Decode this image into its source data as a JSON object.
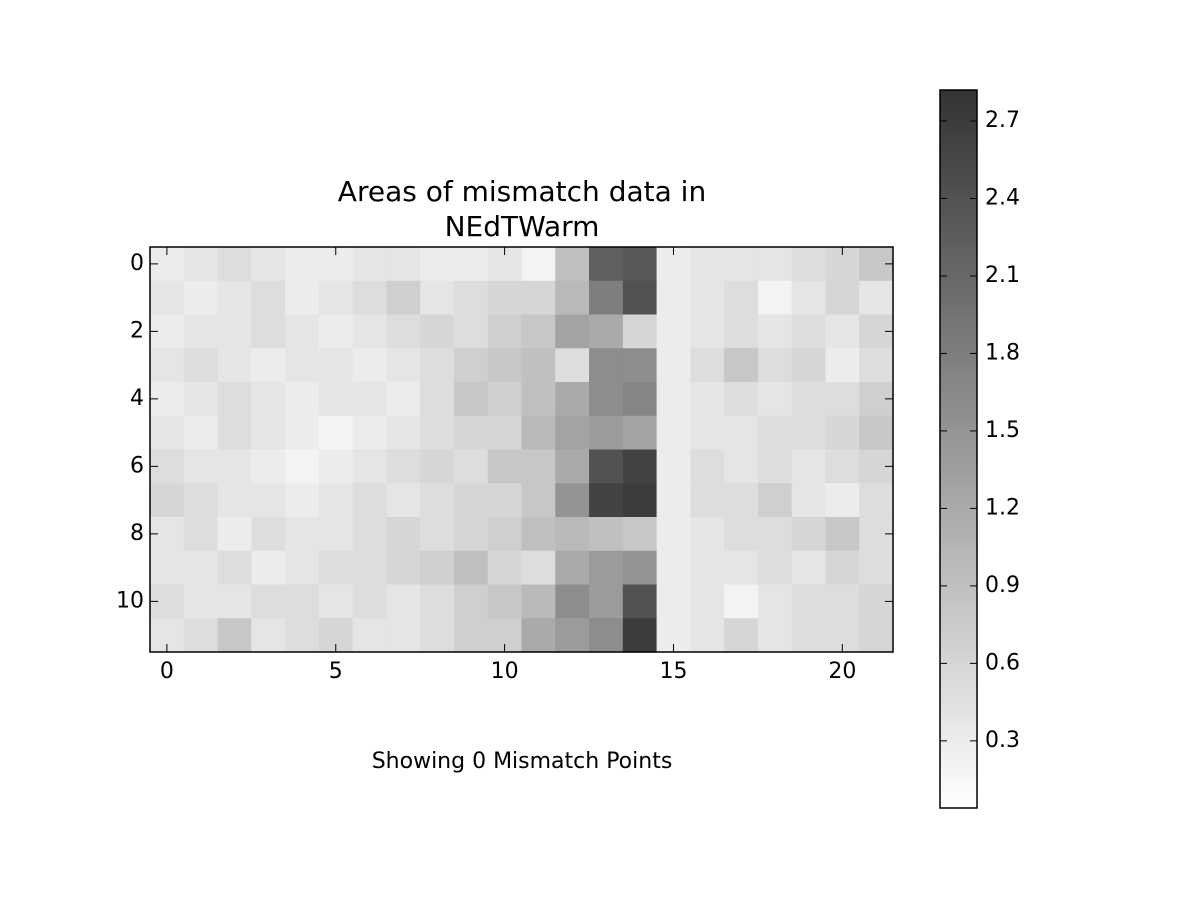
{
  "chart_data": {
    "type": "heatmap",
    "title": [
      "Areas of mismatch data in",
      "NEdTWarm"
    ],
    "annotation": "Showing 0 Mismatch Points",
    "xlim": [
      -0.5,
      21.5
    ],
    "xticks": [
      0,
      5,
      10,
      15,
      20
    ],
    "ylim": [
      11.5,
      -0.5
    ],
    "yticks": [
      0,
      2,
      4,
      6,
      8,
      10
    ],
    "clim": [
      0.04,
      2.82
    ],
    "cticks": [
      0.3,
      0.6,
      0.9,
      1.2,
      1.5,
      1.8,
      2.1,
      2.4,
      2.7
    ],
    "colormap": [
      "#ffffff",
      "#333333"
    ],
    "z": [
      [
        0.3,
        0.4,
        0.5,
        0.4,
        0.3,
        0.3,
        0.4,
        0.4,
        0.3,
        0.3,
        0.4,
        0.2,
        0.9,
        2.2,
        2.3,
        0.3,
        0.4,
        0.4,
        0.4,
        0.5,
        0.6,
        0.8
      ],
      [
        0.4,
        0.3,
        0.4,
        0.5,
        0.3,
        0.4,
        0.5,
        0.7,
        0.4,
        0.5,
        0.6,
        0.6,
        1.0,
        1.8,
        2.4,
        0.3,
        0.4,
        0.5,
        0.2,
        0.4,
        0.6,
        0.4
      ],
      [
        0.3,
        0.4,
        0.4,
        0.5,
        0.4,
        0.3,
        0.4,
        0.5,
        0.6,
        0.5,
        0.7,
        0.8,
        1.3,
        1.2,
        0.6,
        0.3,
        0.4,
        0.5,
        0.4,
        0.5,
        0.4,
        0.6
      ],
      [
        0.4,
        0.5,
        0.4,
        0.3,
        0.4,
        0.4,
        0.3,
        0.4,
        0.5,
        0.7,
        0.8,
        0.9,
        0.5,
        1.6,
        1.6,
        0.3,
        0.5,
        0.8,
        0.5,
        0.6,
        0.3,
        0.5
      ],
      [
        0.3,
        0.4,
        0.5,
        0.4,
        0.3,
        0.4,
        0.4,
        0.3,
        0.5,
        0.8,
        0.7,
        0.9,
        1.2,
        1.6,
        1.7,
        0.3,
        0.4,
        0.5,
        0.4,
        0.5,
        0.5,
        0.7
      ],
      [
        0.4,
        0.3,
        0.5,
        0.4,
        0.3,
        0.2,
        0.3,
        0.4,
        0.5,
        0.6,
        0.6,
        1.0,
        1.3,
        1.4,
        1.3,
        0.3,
        0.4,
        0.4,
        0.5,
        0.5,
        0.6,
        0.8
      ],
      [
        0.5,
        0.4,
        0.4,
        0.3,
        0.2,
        0.3,
        0.4,
        0.5,
        0.6,
        0.5,
        0.8,
        0.8,
        1.2,
        2.4,
        2.6,
        0.3,
        0.5,
        0.4,
        0.5,
        0.4,
        0.5,
        0.6
      ],
      [
        0.6,
        0.5,
        0.4,
        0.4,
        0.3,
        0.4,
        0.5,
        0.4,
        0.5,
        0.6,
        0.6,
        0.8,
        1.5,
        2.6,
        2.7,
        0.3,
        0.5,
        0.5,
        0.7,
        0.4,
        0.3,
        0.5
      ],
      [
        0.4,
        0.5,
        0.3,
        0.5,
        0.4,
        0.4,
        0.5,
        0.6,
        0.5,
        0.6,
        0.7,
        0.9,
        1.0,
        0.9,
        0.8,
        0.3,
        0.4,
        0.5,
        0.5,
        0.6,
        0.8,
        0.5
      ],
      [
        0.4,
        0.4,
        0.5,
        0.3,
        0.4,
        0.5,
        0.5,
        0.6,
        0.7,
        0.9,
        0.6,
        0.5,
        1.2,
        1.4,
        1.5,
        0.3,
        0.4,
        0.4,
        0.5,
        0.4,
        0.6,
        0.5
      ],
      [
        0.5,
        0.4,
        0.4,
        0.5,
        0.5,
        0.4,
        0.5,
        0.4,
        0.5,
        0.7,
        0.8,
        1.0,
        1.6,
        1.4,
        2.4,
        0.3,
        0.4,
        0.2,
        0.4,
        0.5,
        0.5,
        0.6
      ],
      [
        0.4,
        0.5,
        0.8,
        0.4,
        0.5,
        0.6,
        0.4,
        0.4,
        0.5,
        0.7,
        0.7,
        1.2,
        1.4,
        1.6,
        2.7,
        0.3,
        0.4,
        0.6,
        0.4,
        0.5,
        0.5,
        0.6
      ]
    ]
  }
}
